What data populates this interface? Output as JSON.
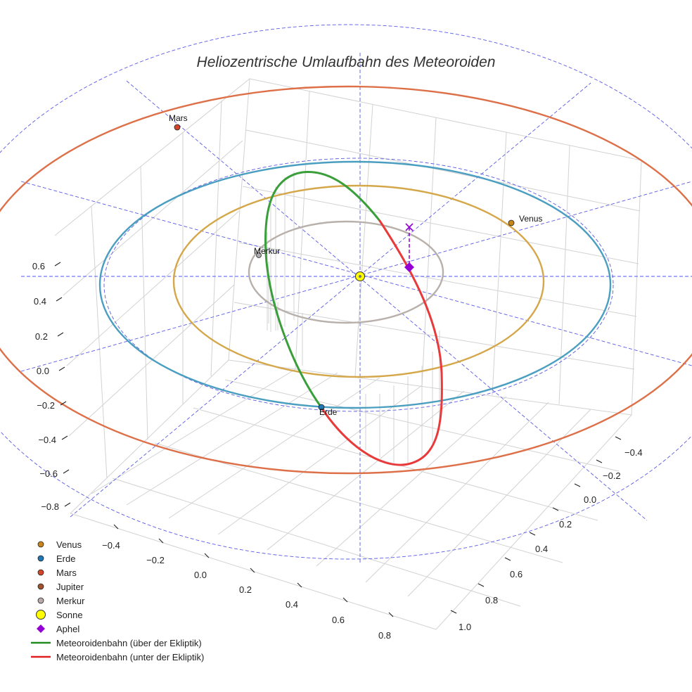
{
  "chart_data": {
    "type": "scatter3d",
    "title": "Heliozentrische Umlaufbahn des Meteoroiden",
    "axes": {
      "x": {
        "ticks": [
          "−0.4",
          "−0.2",
          "0.0",
          "0.2",
          "0.4",
          "0.6",
          "0.8"
        ]
      },
      "y": {
        "ticks": [
          "−0.4",
          "−0.2",
          "0.0",
          "0.2",
          "0.4",
          "0.6",
          "0.8",
          "1.0"
        ]
      },
      "z": {
        "ticks": [
          "0.6",
          "0.4",
          "0.2",
          "0.0",
          "−0.2",
          "−0.4",
          "−0.6",
          "−0.8"
        ]
      }
    },
    "orbits": [
      {
        "name": "Merkur",
        "color": "#b8b0ab"
      },
      {
        "name": "Venus",
        "color": "#d4a74a"
      },
      {
        "name": "Erde",
        "color": "#4a9ec0"
      },
      {
        "name": "Mars",
        "color": "#dd7048"
      }
    ],
    "planets": [
      {
        "name": "Venus",
        "color": "#c8861a",
        "label": "Venus"
      },
      {
        "name": "Erde",
        "color": "#1f77b4",
        "label": "Erde"
      },
      {
        "name": "Mars",
        "color": "#d3462a",
        "label": "Mars"
      },
      {
        "name": "Merkur",
        "color": "#aaaaaa",
        "label": "Merkur"
      }
    ],
    "sun": {
      "name": "Sonne",
      "color": "#ffff00"
    },
    "aphel": {
      "name": "Aphel",
      "color": "#9400d3"
    },
    "meteoroid": [
      {
        "name": "Meteoroidenbahn (über der Ekliptik)",
        "color": "#3a9e3a"
      },
      {
        "name": "Meteoroidenbahn (unter der Ekliptik)",
        "color": "#e83a3a"
      }
    ],
    "guides": {
      "color": "#5a5ae6"
    },
    "legend": [
      {
        "label": "Venus",
        "symbol": "dot",
        "color": "#c8861a"
      },
      {
        "label": "Erde",
        "symbol": "dot",
        "color": "#1f77b4"
      },
      {
        "label": "Mars",
        "symbol": "dot",
        "color": "#d3462a"
      },
      {
        "label": "Jupiter",
        "symbol": "dot",
        "color": "#a0522d"
      },
      {
        "label": "Merkur",
        "symbol": "dot",
        "color": "#bbaaaa"
      },
      {
        "label": "Sonne",
        "symbol": "sun",
        "color": "#ffff00"
      },
      {
        "label": "Aphel",
        "symbol": "diamond",
        "color": "#9400d3"
      },
      {
        "label": "Meteoroidenbahn (über der Ekliptik)",
        "symbol": "line",
        "color": "#228b22"
      },
      {
        "label": "Meteoroidenbahn (unter der Ekliptik)",
        "symbol": "line",
        "color": "#e02020"
      }
    ]
  }
}
